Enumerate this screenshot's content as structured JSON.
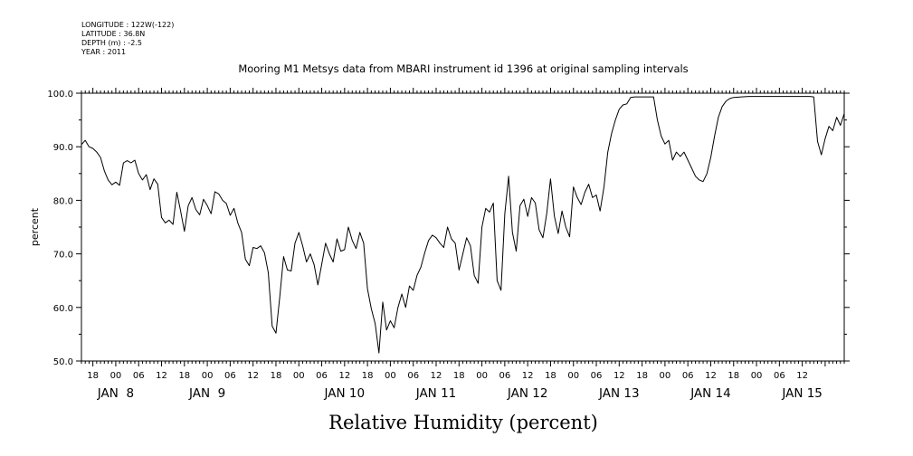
{
  "meta": {
    "longitude": "LONGITUDE : 122W(-122)",
    "latitude": "LATITUDE : 36.8N",
    "depth": "DEPTH (m) : -2.5",
    "year": "YEAR : 2011"
  },
  "chart_data": {
    "type": "line",
    "title": "Mooring M1 Metsys data from MBARI instrument id 1396 at original sampling intervals",
    "xlabel": "Relative Humidity (percent)",
    "ylabel": "percent",
    "ylim": [
      50,
      100
    ],
    "yticks": [
      50,
      60,
      70,
      80,
      90,
      100
    ],
    "xlim": [
      "2011-01-07T15:00",
      "2011-01-15T23:00"
    ],
    "hour_ticks": [
      {
        "t": "2011-01-07T18:00",
        "label": "18"
      },
      {
        "t": "2011-01-08T00:00",
        "label": "00"
      },
      {
        "t": "2011-01-08T06:00",
        "label": "06"
      },
      {
        "t": "2011-01-08T12:00",
        "label": "12"
      },
      {
        "t": "2011-01-08T18:00",
        "label": "18"
      },
      {
        "t": "2011-01-09T00:00",
        "label": "00"
      },
      {
        "t": "2011-01-09T06:00",
        "label": "06"
      },
      {
        "t": "2011-01-09T12:00",
        "label": "12"
      },
      {
        "t": "2011-01-09T18:00",
        "label": "18"
      },
      {
        "t": "2011-01-10T00:00",
        "label": "00"
      },
      {
        "t": "2011-01-10T06:00",
        "label": "06"
      },
      {
        "t": "2011-01-10T12:00",
        "label": "12"
      },
      {
        "t": "2011-01-10T18:00",
        "label": "18"
      },
      {
        "t": "2011-01-11T00:00",
        "label": "00"
      },
      {
        "t": "2011-01-11T06:00",
        "label": "06"
      },
      {
        "t": "2011-01-11T12:00",
        "label": "12"
      },
      {
        "t": "2011-01-11T18:00",
        "label": "18"
      },
      {
        "t": "2011-01-12T00:00",
        "label": "00"
      },
      {
        "t": "2011-01-12T06:00",
        "label": "06"
      },
      {
        "t": "2011-01-12T12:00",
        "label": "12"
      },
      {
        "t": "2011-01-12T18:00",
        "label": "18"
      },
      {
        "t": "2011-01-13T00:00",
        "label": "00"
      },
      {
        "t": "2011-01-13T06:00",
        "label": "06"
      },
      {
        "t": "2011-01-13T12:00",
        "label": "12"
      },
      {
        "t": "2011-01-13T18:00",
        "label": "18"
      },
      {
        "t": "2011-01-14T00:00",
        "label": "00"
      },
      {
        "t": "2011-01-14T06:00",
        "label": "06"
      },
      {
        "t": "2011-01-14T12:00",
        "label": "12"
      },
      {
        "t": "2011-01-14T18:00",
        "label": "18"
      },
      {
        "t": "2011-01-15T00:00",
        "label": "00"
      },
      {
        "t": "2011-01-15T06:00",
        "label": "06"
      },
      {
        "t": "2011-01-15T12:00",
        "label": "12"
      }
    ],
    "day_labels": [
      {
        "t": "2011-01-08T00:00",
        "label": "JAN  8"
      },
      {
        "t": "2011-01-09T00:00",
        "label": "JAN  9"
      },
      {
        "t": "2011-01-10T12:00",
        "label": "JAN 10"
      },
      {
        "t": "2011-01-11T12:00",
        "label": "JAN 11"
      },
      {
        "t": "2011-01-12T12:00",
        "label": "JAN 12"
      },
      {
        "t": "2011-01-13T12:00",
        "label": "JAN 13"
      },
      {
        "t": "2011-01-14T12:00",
        "label": "JAN 14"
      },
      {
        "t": "2011-01-15T12:00",
        "label": "JAN 15"
      }
    ],
    "grid": false,
    "series": [
      {
        "points": [
          [
            "2011-01-07T15:00",
            90.4
          ],
          [
            "2011-01-07T16:00",
            91.2
          ],
          [
            "2011-01-07T17:00",
            90.0
          ],
          [
            "2011-01-07T18:00",
            89.7
          ],
          [
            "2011-01-07T19:00",
            89.0
          ],
          [
            "2011-01-07T20:00",
            88.0
          ],
          [
            "2011-01-07T21:00",
            85.5
          ],
          [
            "2011-01-07T22:00",
            83.8
          ],
          [
            "2011-01-07T23:00",
            82.9
          ],
          [
            "2011-01-08T00:00",
            83.4
          ],
          [
            "2011-01-08T01:00",
            82.8
          ],
          [
            "2011-01-08T02:00",
            87.0
          ],
          [
            "2011-01-08T03:00",
            87.4
          ],
          [
            "2011-01-08T04:00",
            87.0
          ],
          [
            "2011-01-08T05:00",
            87.5
          ],
          [
            "2011-01-08T06:00",
            85.0
          ],
          [
            "2011-01-08T07:00",
            83.8
          ],
          [
            "2011-01-08T08:00",
            84.8
          ],
          [
            "2011-01-08T09:00",
            82.0
          ],
          [
            "2011-01-08T10:00",
            84.0
          ],
          [
            "2011-01-08T11:00",
            83.0
          ],
          [
            "2011-01-08T12:00",
            76.8
          ],
          [
            "2011-01-08T13:00",
            75.8
          ],
          [
            "2011-01-08T14:00",
            76.3
          ],
          [
            "2011-01-08T15:00",
            75.5
          ],
          [
            "2011-01-08T16:00",
            81.5
          ],
          [
            "2011-01-08T17:00",
            78.0
          ],
          [
            "2011-01-08T18:00",
            74.2
          ],
          [
            "2011-01-08T19:00",
            79.0
          ],
          [
            "2011-01-08T20:00",
            80.5
          ],
          [
            "2011-01-08T21:00",
            78.3
          ],
          [
            "2011-01-08T22:00",
            77.3
          ],
          [
            "2011-01-08T23:00",
            80.2
          ],
          [
            "2011-01-09T00:00",
            79.0
          ],
          [
            "2011-01-09T01:00",
            77.5
          ],
          [
            "2011-01-09T02:00",
            81.6
          ],
          [
            "2011-01-09T03:00",
            81.2
          ],
          [
            "2011-01-09T04:00",
            80.0
          ],
          [
            "2011-01-09T05:00",
            79.4
          ],
          [
            "2011-01-09T06:00",
            77.2
          ],
          [
            "2011-01-09T07:00",
            78.5
          ],
          [
            "2011-01-09T08:00",
            75.8
          ],
          [
            "2011-01-09T09:00",
            74.0
          ],
          [
            "2011-01-09T10:00",
            69.0
          ],
          [
            "2011-01-09T11:00",
            67.8
          ],
          [
            "2011-01-09T12:00",
            71.2
          ],
          [
            "2011-01-09T13:00",
            71.0
          ],
          [
            "2011-01-09T14:00",
            71.5
          ],
          [
            "2011-01-09T15:00",
            70.2
          ],
          [
            "2011-01-09T16:00",
            66.5
          ],
          [
            "2011-01-09T17:00",
            56.5
          ],
          [
            "2011-01-09T18:00",
            55.2
          ],
          [
            "2011-01-09T19:00",
            62.0
          ],
          [
            "2011-01-09T20:00",
            69.5
          ],
          [
            "2011-01-09T21:00",
            67.0
          ],
          [
            "2011-01-09T22:00",
            66.8
          ],
          [
            "2011-01-09T23:00",
            72.0
          ],
          [
            "2011-01-10T00:00",
            74.0
          ],
          [
            "2011-01-10T01:00",
            71.5
          ],
          [
            "2011-01-10T02:00",
            68.5
          ],
          [
            "2011-01-10T03:00",
            70.0
          ],
          [
            "2011-01-10T04:00",
            68.0
          ],
          [
            "2011-01-10T05:00",
            64.2
          ],
          [
            "2011-01-10T06:00",
            68.0
          ],
          [
            "2011-01-10T07:00",
            72.0
          ],
          [
            "2011-01-10T08:00",
            70.0
          ],
          [
            "2011-01-10T09:00",
            68.5
          ],
          [
            "2011-01-10T10:00",
            72.8
          ],
          [
            "2011-01-10T11:00",
            70.5
          ],
          [
            "2011-01-10T12:00",
            70.8
          ],
          [
            "2011-01-10T13:00",
            75.0
          ],
          [
            "2011-01-10T14:00",
            72.5
          ],
          [
            "2011-01-10T15:00",
            71.0
          ],
          [
            "2011-01-10T16:00",
            74.0
          ],
          [
            "2011-01-10T17:00",
            72.0
          ],
          [
            "2011-01-10T18:00",
            63.5
          ],
          [
            "2011-01-10T19:00",
            59.8
          ],
          [
            "2011-01-10T20:00",
            57.0
          ],
          [
            "2011-01-10T21:00",
            51.5
          ],
          [
            "2011-01-10T22:00",
            61.0
          ],
          [
            "2011-01-10T23:00",
            55.8
          ],
          [
            "2011-01-11T00:00",
            57.5
          ],
          [
            "2011-01-11T01:00",
            56.2
          ],
          [
            "2011-01-11T02:00",
            60.0
          ],
          [
            "2011-01-11T03:00",
            62.5
          ],
          [
            "2011-01-11T04:00",
            60.0
          ],
          [
            "2011-01-11T05:00",
            64.0
          ],
          [
            "2011-01-11T06:00",
            63.2
          ],
          [
            "2011-01-11T07:00",
            66.0
          ],
          [
            "2011-01-11T08:00",
            67.5
          ],
          [
            "2011-01-11T09:00",
            70.2
          ],
          [
            "2011-01-11T10:00",
            72.5
          ],
          [
            "2011-01-11T11:00",
            73.5
          ],
          [
            "2011-01-11T12:00",
            73.0
          ],
          [
            "2011-01-11T13:00",
            72.0
          ],
          [
            "2011-01-11T14:00",
            71.2
          ],
          [
            "2011-01-11T15:00",
            75.0
          ],
          [
            "2011-01-11T16:00",
            72.8
          ],
          [
            "2011-01-11T17:00",
            72.0
          ],
          [
            "2011-01-11T18:00",
            67.0
          ],
          [
            "2011-01-11T19:00",
            70.0
          ],
          [
            "2011-01-11T20:00",
            73.0
          ],
          [
            "2011-01-11T21:00",
            71.5
          ],
          [
            "2011-01-11T22:00",
            66.0
          ],
          [
            "2011-01-11T23:00",
            64.5
          ],
          [
            "2011-01-12T00:00",
            75.0
          ],
          [
            "2011-01-12T01:00",
            78.5
          ],
          [
            "2011-01-12T02:00",
            77.8
          ],
          [
            "2011-01-12T03:00",
            79.5
          ],
          [
            "2011-01-12T04:00",
            65.0
          ],
          [
            "2011-01-12T05:00",
            63.2
          ],
          [
            "2011-01-12T06:00",
            77.5
          ],
          [
            "2011-01-12T07:00",
            84.5
          ],
          [
            "2011-01-12T08:00",
            74.0
          ],
          [
            "2011-01-12T09:00",
            70.5
          ],
          [
            "2011-01-12T10:00",
            79.0
          ],
          [
            "2011-01-12T11:00",
            80.2
          ],
          [
            "2011-01-12T12:00",
            77.0
          ],
          [
            "2011-01-12T13:00",
            80.5
          ],
          [
            "2011-01-12T14:00",
            79.5
          ],
          [
            "2011-01-12T15:00",
            74.5
          ],
          [
            "2011-01-12T16:00",
            73.0
          ],
          [
            "2011-01-12T17:00",
            77.5
          ],
          [
            "2011-01-12T18:00",
            84.0
          ],
          [
            "2011-01-12T19:00",
            77.0
          ],
          [
            "2011-01-12T20:00",
            73.8
          ],
          [
            "2011-01-12T21:00",
            78.0
          ],
          [
            "2011-01-12T22:00",
            75.0
          ],
          [
            "2011-01-12T23:00",
            73.2
          ],
          [
            "2011-01-13T00:00",
            82.5
          ],
          [
            "2011-01-13T01:00",
            80.5
          ],
          [
            "2011-01-13T02:00",
            79.2
          ],
          [
            "2011-01-13T03:00",
            81.5
          ],
          [
            "2011-01-13T04:00",
            83.0
          ],
          [
            "2011-01-13T05:00",
            80.5
          ],
          [
            "2011-01-13T06:00",
            81.0
          ],
          [
            "2011-01-13T07:00",
            78.0
          ],
          [
            "2011-01-13T08:00",
            82.5
          ],
          [
            "2011-01-13T09:00",
            89.0
          ],
          [
            "2011-01-13T10:00",
            92.5
          ],
          [
            "2011-01-13T11:00",
            95.0
          ],
          [
            "2011-01-13T12:00",
            97.0
          ],
          [
            "2011-01-13T13:00",
            97.8
          ],
          [
            "2011-01-13T14:00",
            98.0
          ],
          [
            "2011-01-13T15:00",
            99.2
          ],
          [
            "2011-01-13T16:00",
            99.3
          ],
          [
            "2011-01-13T17:00",
            99.3
          ],
          [
            "2011-01-13T18:00",
            99.3
          ],
          [
            "2011-01-13T19:00",
            99.3
          ],
          [
            "2011-01-13T20:00",
            99.3
          ],
          [
            "2011-01-13T21:00",
            99.3
          ],
          [
            "2011-01-13T22:00",
            95.0
          ],
          [
            "2011-01-13T23:00",
            92.0
          ],
          [
            "2011-01-14T00:00",
            90.5
          ],
          [
            "2011-01-14T01:00",
            91.2
          ],
          [
            "2011-01-14T02:00",
            87.5
          ],
          [
            "2011-01-14T03:00",
            89.0
          ],
          [
            "2011-01-14T04:00",
            88.2
          ],
          [
            "2011-01-14T05:00",
            89.0
          ],
          [
            "2011-01-14T06:00",
            87.5
          ],
          [
            "2011-01-14T07:00",
            86.0
          ],
          [
            "2011-01-14T08:00",
            84.5
          ],
          [
            "2011-01-14T09:00",
            83.8
          ],
          [
            "2011-01-14T10:00",
            83.5
          ],
          [
            "2011-01-14T11:00",
            85.0
          ],
          [
            "2011-01-14T12:00",
            88.0
          ],
          [
            "2011-01-14T13:00",
            92.0
          ],
          [
            "2011-01-14T14:00",
            95.5
          ],
          [
            "2011-01-14T15:00",
            97.5
          ],
          [
            "2011-01-14T16:00",
            98.5
          ],
          [
            "2011-01-14T17:00",
            99.0
          ],
          [
            "2011-01-14T18:00",
            99.2
          ],
          [
            "2011-01-14T20:00",
            99.3
          ],
          [
            "2011-01-14T22:00",
            99.4
          ],
          [
            "2011-01-15T00:00",
            99.4
          ],
          [
            "2011-01-15T02:00",
            99.4
          ],
          [
            "2011-01-15T04:00",
            99.4
          ],
          [
            "2011-01-15T06:00",
            99.4
          ],
          [
            "2011-01-15T08:00",
            99.4
          ],
          [
            "2011-01-15T10:00",
            99.4
          ],
          [
            "2011-01-15T12:00",
            99.4
          ],
          [
            "2011-01-15T14:00",
            99.4
          ],
          [
            "2011-01-15T15:00",
            99.3
          ],
          [
            "2011-01-15T16:00",
            91.0
          ],
          [
            "2011-01-15T17:00",
            88.5
          ],
          [
            "2011-01-15T18:00",
            91.5
          ],
          [
            "2011-01-15T19:00",
            93.8
          ],
          [
            "2011-01-15T20:00",
            93.0
          ],
          [
            "2011-01-15T21:00",
            95.5
          ],
          [
            "2011-01-15T22:00",
            94.0
          ],
          [
            "2011-01-15T23:00",
            96.2
          ]
        ]
      }
    ]
  }
}
